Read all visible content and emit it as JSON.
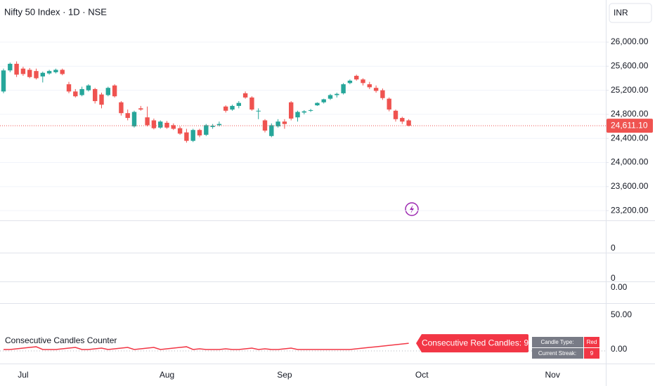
{
  "chart_data": {
    "type": "candlestick",
    "title": "Nifty 50 Index · 1D · NSE",
    "currency": "INR",
    "categories": [
      null,
      null,
      null,
      "Jul",
      null,
      null,
      null,
      null,
      null,
      null,
      null,
      null,
      null,
      null,
      null,
      null,
      null,
      null,
      null,
      null,
      null,
      null,
      null,
      null,
      null,
      "Aug",
      null,
      null,
      null,
      null,
      null,
      null,
      null,
      null,
      null,
      null,
      null,
      null,
      null,
      null,
      null,
      null,
      null,
      "Sep",
      null,
      null,
      null,
      null,
      null,
      null,
      null,
      null,
      null,
      null,
      null,
      null,
      null,
      null,
      null,
      null,
      null,
      null,
      null,
      null,
      "Oct",
      null,
      null,
      null,
      null,
      null,
      null,
      null,
      null,
      null,
      null,
      null,
      null,
      null,
      null,
      null,
      null,
      null,
      null,
      null,
      "Nov",
      null,
      null,
      null
    ],
    "open": [
      25180,
      25530,
      25640,
      25560,
      25540,
      25520,
      25430,
      25480,
      25500,
      25540,
      25300,
      25180,
      25120,
      25200,
      25220,
      25130,
      25120,
      25280,
      25000,
      24820,
      24600,
      24900,
      24750,
      24700,
      24580,
      24660,
      24620,
      24570,
      24500,
      24360,
      24540,
      24460,
      24590,
      24620,
      24930,
      24880,
      24940,
      25150,
      25080,
      24850,
      24700,
      24440,
      24600,
      24680,
      25000,
      24750,
      24830,
      24860,
      24950,
      25000,
      25060,
      25120,
      25150,
      25320,
      25440,
      25380,
      25300,
      25240,
      25200,
      25060,
      24860,
      24740,
      24700,
      null,
      null,
      null,
      null,
      null,
      null,
      null,
      null,
      null,
      null,
      null,
      null,
      null,
      null,
      null,
      null,
      null,
      null,
      null,
      null,
      null,
      null,
      null,
      null,
      null
    ],
    "high": [
      25560,
      25660,
      25680,
      25590,
      25570,
      25560,
      25510,
      25540,
      25560,
      25560,
      25340,
      25220,
      25260,
      25300,
      25240,
      25160,
      25260,
      25300,
      25020,
      24880,
      24860,
      24940,
      24930,
      24730,
      24700,
      24690,
      24650,
      24600,
      24560,
      24560,
      24560,
      24640,
      24640,
      24680,
      24950,
      24960,
      25020,
      25180,
      25100,
      24900,
      24720,
      24650,
      24720,
      24720,
      25020,
      24860,
      24870,
      24890,
      25000,
      25060,
      25140,
      25160,
      25320,
      25380,
      25460,
      25400,
      25340,
      25280,
      25230,
      25080,
      24880,
      24760,
      24720,
      null,
      null,
      null,
      null,
      null,
      null,
      null,
      null,
      null,
      null,
      null,
      null,
      null,
      null,
      null,
      null,
      null,
      null,
      null,
      null,
      null,
      null,
      null,
      null,
      null
    ],
    "low": [
      25150,
      25500,
      25420,
      25440,
      25400,
      25380,
      25330,
      25460,
      25480,
      25450,
      25150,
      25080,
      25100,
      25180,
      24980,
      24900,
      25100,
      25080,
      24780,
      24700,
      24580,
      24860,
      24600,
      24550,
      24560,
      24560,
      24540,
      24460,
      24330,
      24340,
      24420,
      24440,
      24560,
      24600,
      24830,
      24860,
      24900,
      25060,
      24860,
      24720,
      24500,
      24420,
      24580,
      24560,
      24700,
      24680,
      24800,
      24840,
      24940,
      24980,
      25040,
      25080,
      25130,
      25300,
      25360,
      25280,
      25220,
      25160,
      25040,
      24850,
      24680,
      24640,
      24600,
      null,
      null,
      null,
      null,
      null,
      null,
      null,
      null,
      null,
      null,
      null,
      null,
      null,
      null,
      null,
      null,
      null,
      null,
      null,
      null,
      null,
      null,
      null,
      null,
      null
    ],
    "close": [
      25530,
      25640,
      25460,
      25470,
      25420,
      25400,
      25490,
      25520,
      25540,
      25470,
      25180,
      25100,
      25220,
      25280,
      25020,
      24960,
      25240,
      25100,
      24820,
      24740,
      24840,
      24880,
      24620,
      24570,
      24680,
      24580,
      24560,
      24480,
      24360,
      24540,
      24450,
      24620,
      24610,
      24640,
      24860,
      24940,
      24990,
      25080,
      24880,
      24860,
      24530,
      24620,
      24680,
      24640,
      24730,
      24840,
      24850,
      24870,
      24990,
      25050,
      25120,
      25140,
      25300,
      25360,
      25380,
      25320,
      25250,
      25190,
      25070,
      24880,
      24720,
      24680,
      24611.1,
      null,
      null,
      null,
      null,
      null,
      null,
      null,
      null,
      null,
      null,
      null,
      null,
      null,
      null,
      null,
      null,
      null,
      null,
      null,
      null,
      null,
      null,
      null,
      null,
      null
    ],
    "up_color": "#26a69a",
    "down_color": "#ef5350",
    "ylim": [
      23050,
      26700
    ],
    "yticks": [
      {
        "value": 23200,
        "label": "23,200.00"
      },
      {
        "value": 23600,
        "label": "23,600.00"
      },
      {
        "value": 24000,
        "label": "24,000.00"
      },
      {
        "value": 24400,
        "label": "24,400.00"
      },
      {
        "value": 24800,
        "label": "24,800.00"
      },
      {
        "value": 25200,
        "label": "25,200.00"
      },
      {
        "value": 25600,
        "label": "25,600.00"
      },
      {
        "value": 26000,
        "label": "26,000.00"
      }
    ],
    "grid": true,
    "last_price": {
      "value": 24611.1,
      "label": "24,611.10"
    },
    "panes": [
      {
        "ytick": "0"
      },
      {
        "ytick": "0"
      },
      {
        "ytick": "0.00"
      }
    ],
    "indicator": {
      "title": "Consecutive Candles Counter",
      "color": "#f23645",
      "values": [
        0,
        0,
        1,
        2,
        3,
        4,
        0,
        0,
        0,
        1,
        2,
        3,
        0,
        0,
        1,
        2,
        0,
        1,
        2,
        3,
        0,
        1,
        2,
        3,
        0,
        1,
        2,
        3,
        4,
        0,
        1,
        0,
        0,
        0,
        1,
        0,
        0,
        1,
        2,
        0,
        1,
        0,
        0,
        1,
        2,
        0,
        0,
        0,
        0,
        0,
        0,
        0,
        0,
        0,
        1,
        2,
        3,
        4,
        5,
        6,
        7,
        8,
        9,
        null,
        null,
        null,
        null,
        null,
        null,
        null,
        null,
        null,
        null,
        null,
        null,
        null,
        null,
        null,
        null,
        null,
        null,
        null,
        null,
        null,
        null,
        null,
        null,
        null
      ],
      "ylim": [
        -20.4,
        67.3
      ],
      "yticks": [
        {
          "value": 0,
          "label": "0.00"
        },
        {
          "value": 50,
          "label": "50.00"
        }
      ],
      "label": "Consecutive Red Candles: 9",
      "table": [
        [
          "Candle Type:",
          "Red"
        ],
        [
          "Current Streak:",
          "9"
        ]
      ]
    }
  }
}
